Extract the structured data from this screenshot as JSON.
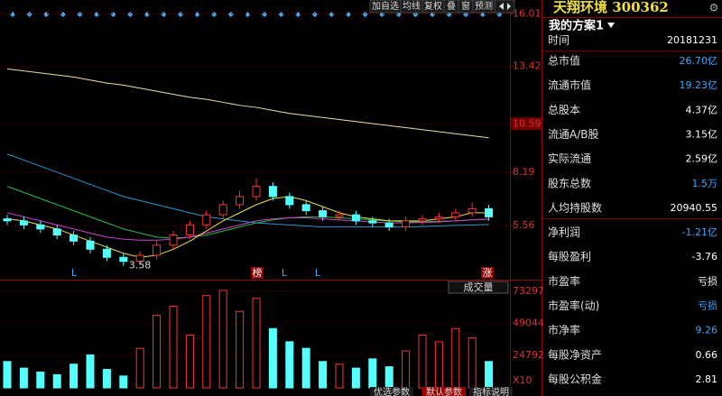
{
  "toolbar": [
    "加自选",
    "均线",
    "复权",
    "叠",
    "窗",
    "预测"
  ],
  "chart_data": {
    "type": "candlestick",
    "open": [
      5.9,
      5.8,
      5.6,
      5.4,
      5.1,
      4.8,
      4.4,
      4.0,
      3.8,
      4.1,
      4.6,
      5.1,
      5.6,
      6.1,
      6.6,
      7.0,
      7.5,
      7.0,
      6.6,
      6.3,
      6.0,
      6.1,
      5.8,
      5.7,
      5.5,
      5.8,
      5.9,
      6.0,
      6.2,
      6.4
    ],
    "high": [
      6.1,
      6.0,
      5.8,
      5.6,
      5.3,
      5.0,
      4.6,
      4.2,
      4.3,
      4.8,
      5.3,
      5.8,
      6.3,
      6.8,
      7.3,
      7.9,
      7.7,
      7.2,
      6.8,
      6.5,
      6.3,
      6.3,
      6.0,
      5.9,
      6.0,
      6.1,
      6.2,
      6.4,
      6.7,
      6.6
    ],
    "low": [
      5.6,
      5.4,
      5.2,
      4.9,
      4.6,
      4.2,
      3.8,
      3.58,
      3.6,
      3.9,
      4.4,
      4.9,
      5.4,
      5.9,
      6.4,
      6.8,
      6.8,
      6.4,
      6.1,
      5.8,
      5.8,
      5.6,
      5.5,
      5.3,
      5.3,
      5.6,
      5.7,
      5.8,
      6.0,
      5.8
    ],
    "close": [
      5.8,
      5.6,
      5.4,
      5.1,
      4.8,
      4.4,
      4.0,
      3.8,
      4.1,
      4.6,
      5.1,
      5.6,
      6.1,
      6.6,
      7.0,
      7.5,
      7.0,
      6.6,
      6.3,
      6.0,
      6.1,
      5.8,
      5.7,
      5.5,
      5.8,
      5.9,
      6.0,
      6.2,
      6.4,
      6.0
    ],
    "up_color": "#ff3232",
    "down_color": "#54ffff",
    "ylim": [
      2.9,
      16.7
    ],
    "yticks": [
      5.56,
      8.19,
      10.59,
      13.42,
      16.01
    ],
    "moving_averages": [
      {
        "color": "#e8e0a8",
        "values": [
          13.3,
          13.2,
          13.1,
          13.0,
          12.9,
          12.75,
          12.6,
          12.5,
          12.35,
          12.2,
          12.05,
          11.9,
          11.8,
          11.65,
          11.5,
          11.4,
          11.25,
          11.1,
          11.0,
          10.9,
          10.8,
          10.7,
          10.6,
          10.5,
          10.4,
          10.3,
          10.2,
          10.1,
          10.0,
          9.9
        ]
      },
      {
        "color": "#1e9ad0",
        "values": [
          9.1,
          8.8,
          8.5,
          8.2,
          7.9,
          7.6,
          7.3,
          7.0,
          6.8,
          6.6,
          6.4,
          6.2,
          6.0,
          5.9,
          5.8,
          5.7,
          5.65,
          5.6,
          5.55,
          5.5,
          5.5,
          5.5,
          5.5,
          5.5,
          5.5,
          5.52,
          5.55,
          5.58,
          5.6,
          5.62
        ]
      },
      {
        "color": "#20c040",
        "values": [
          7.5,
          7.2,
          6.9,
          6.6,
          6.3,
          6.0,
          5.7,
          5.4,
          5.2,
          5.0,
          4.95,
          5.0,
          5.1,
          5.3,
          5.5,
          5.7,
          5.85,
          5.95,
          6.0,
          6.0,
          5.95,
          5.9,
          5.85,
          5.8,
          5.75,
          5.75,
          5.78,
          5.8,
          5.85,
          5.88
        ]
      },
      {
        "color": "#d040d0",
        "values": [
          6.2,
          6.0,
          5.8,
          5.6,
          5.4,
          5.2,
          5.0,
          4.9,
          4.85,
          4.85,
          4.9,
          5.0,
          5.2,
          5.4,
          5.6,
          5.8,
          5.9,
          5.95,
          5.95,
          5.9,
          5.85,
          5.8,
          5.75,
          5.7,
          5.7,
          5.72,
          5.75,
          5.8,
          5.85,
          5.9
        ]
      },
      {
        "color": "#f0e040",
        "values": [
          5.9,
          5.8,
          5.6,
          5.4,
          5.1,
          4.8,
          4.5,
          4.2,
          4.0,
          4.1,
          4.4,
          4.8,
          5.3,
          5.8,
          6.2,
          6.6,
          6.9,
          7.0,
          6.8,
          6.5,
          6.2,
          6.0,
          5.9,
          5.8,
          5.8,
          5.8,
          5.9,
          6.0,
          6.2,
          6.2
        ]
      }
    ],
    "markers": [
      "L",
      "榜",
      "L",
      "L",
      "涨"
    ],
    "volume": {
      "label": "成交量",
      "unit": "X10",
      "ylim": [
        0,
        78000
      ],
      "yticks": [
        24792,
        49044,
        73297
      ],
      "values": [
        20000,
        15000,
        12000,
        10000,
        18000,
        25000,
        14000,
        9000,
        30000,
        55000,
        62000,
        40000,
        70000,
        74000,
        58000,
        68000,
        45000,
        35000,
        30000,
        20000,
        18000,
        15000,
        22000,
        16000,
        28000,
        40000,
        35000,
        45000,
        38000,
        20000
      ]
    }
  },
  "panel": {
    "title": "天翔环境 300362",
    "scheme": "我的方案1",
    "rows": [
      {
        "label": "时间",
        "value": "20181231",
        "color": "#ffffff"
      },
      {
        "label": "总市值",
        "value": "26.70亿",
        "color": "#3aa8ff"
      },
      {
        "label": "流通市值",
        "value": "19.23亿",
        "color": "#3aa8ff"
      },
      {
        "label": "总股本",
        "value": "4.37亿",
        "color": "#ffffff"
      },
      {
        "label": "流通A/B股",
        "value": "3.15亿",
        "color": "#ffffff"
      },
      {
        "label": "实际流通",
        "value": "2.59亿",
        "color": "#ffffff"
      },
      {
        "label": "股东总数",
        "value": "1.5万",
        "color": "#3aa8ff"
      },
      {
        "label": "人均持股数",
        "value": "20940.55",
        "color": "#ffffff"
      },
      {
        "label": "净利润",
        "value": "-1.21亿",
        "color": "#3aa8ff"
      },
      {
        "label": "每股盈利",
        "value": "-3.76",
        "color": "#ffffff"
      },
      {
        "label": "市盈率",
        "value": "亏损",
        "color": "#ffffff"
      },
      {
        "label": "市盈率(动)",
        "value": "亏损",
        "color": "#3aa8ff"
      },
      {
        "label": "市净率",
        "value": "9.26",
        "color": "#3aa8ff"
      },
      {
        "label": "每股净资产",
        "value": "0.66",
        "color": "#ffffff"
      },
      {
        "label": "每股公积金",
        "value": "2.81",
        "color": "#ffffff"
      }
    ]
  },
  "tabs": [
    "优选参数",
    "默认参数",
    "指标说明"
  ]
}
